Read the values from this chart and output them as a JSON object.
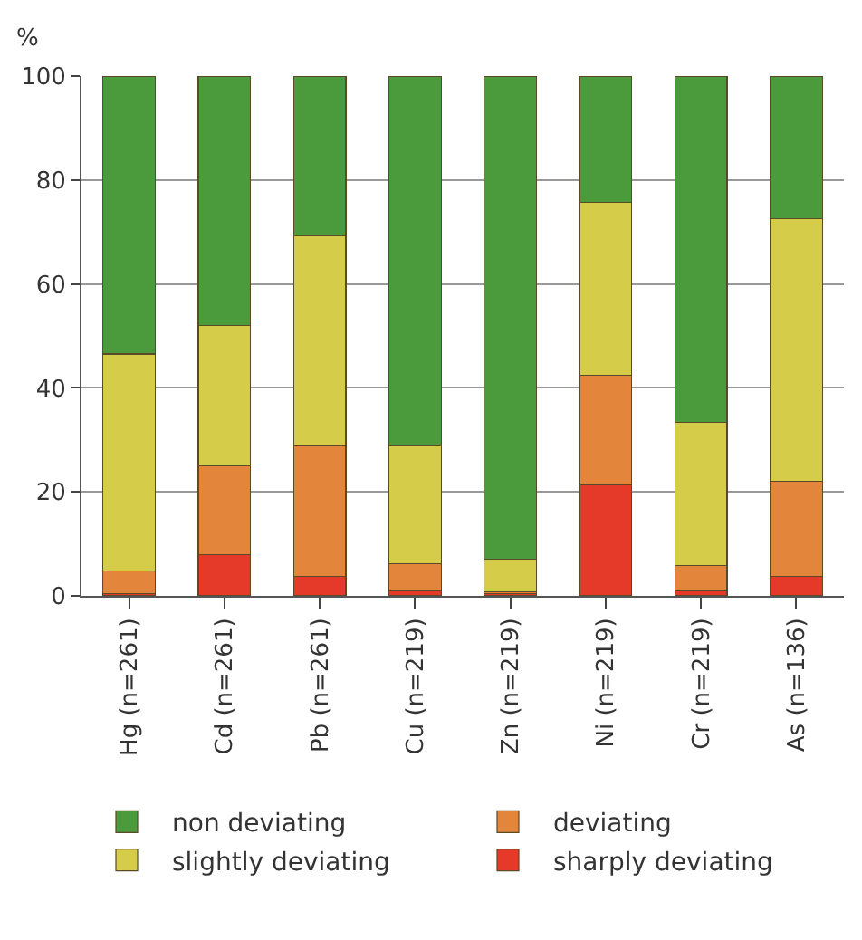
{
  "chart_data": {
    "type": "bar",
    "stacked": true,
    "ylabel": "%",
    "categories": [
      "Hg (n=261)",
      "Cd (n=261)",
      "Pb (n=261)",
      "Cu (n=219)",
      "Zn (n=219)",
      "Ni (n=219)",
      "Cr (n=219)",
      "As (n=136)"
    ],
    "series": [
      {
        "name": "sharply deviating",
        "color": "#e5392a",
        "values": [
          0.4,
          7.9,
          3.7,
          0.9,
          0.4,
          21.4,
          0.9,
          3.7
        ]
      },
      {
        "name": "deviating",
        "color": "#e3853a",
        "values": [
          4.4,
          17.2,
          25.3,
          5.3,
          0.4,
          21.0,
          4.9,
          18.3
        ]
      },
      {
        "name": "slightly deviating",
        "color": "#d5cc4a",
        "values": [
          41.7,
          26.9,
          40.2,
          22.8,
          6.3,
          33.3,
          27.5,
          50.5
        ]
      },
      {
        "name": "non deviating",
        "color": "#4b9a3b",
        "values": [
          53.5,
          48.0,
          30.8,
          71.0,
          92.9,
          24.3,
          66.7,
          27.5
        ]
      }
    ],
    "ylim": [
      0,
      100
    ],
    "yticks": [
      0,
      20,
      40,
      60,
      80,
      100
    ],
    "grid": "y",
    "legend": "bottom"
  }
}
